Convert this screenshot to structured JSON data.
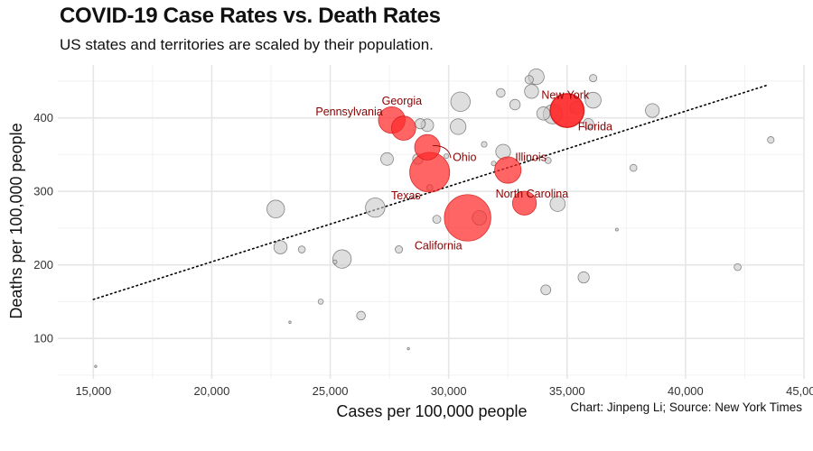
{
  "title": "COVID-19 Case Rates vs. Death Rates",
  "subtitle": "US states and territories are scaled by their population.",
  "caption": "Chart: Jinpeng Li; Source: New York Times",
  "colors": {
    "highlight_fill": "#ff2a2a",
    "highlight_stroke": "#d11111",
    "other_fill": "#c8c8c8",
    "other_stroke": "#555555",
    "label": "#8b0000",
    "grid_major": "#e6e6e6",
    "grid_minor": "#f2f2f2",
    "trend": "#000000"
  },
  "chart_data": {
    "type": "scatter",
    "xlabel": "Cases per 100,000 people",
    "ylabel": "Deaths per 100,000 people",
    "xlim": [
      13500,
      45000
    ],
    "ylim": [
      45,
      472
    ],
    "x_ticks": [
      15000,
      20000,
      25000,
      30000,
      35000,
      40000,
      45000
    ],
    "x_tick_labels": [
      "15,000",
      "20,000",
      "25,000",
      "30,000",
      "35,000",
      "40,000",
      "45,000"
    ],
    "y_ticks": [
      100,
      200,
      300,
      400
    ],
    "y_tick_labels": [
      "100",
      "200",
      "300",
      "400"
    ],
    "grid": true,
    "legend": "none",
    "trend_line": {
      "x": [
        15000,
        43500
      ],
      "y": [
        153,
        445
      ],
      "style": "dotted"
    },
    "highlighted": [
      {
        "label": "Pennsylvania",
        "x": 27600,
        "y": 397,
        "population_m": 13.0
      },
      {
        "label": "Georgia",
        "x": 28100,
        "y": 386,
        "population_m": 10.7
      },
      {
        "label": "New York",
        "x": 35000,
        "y": 410,
        "population_m": 20.2
      },
      {
        "label": "Florida",
        "x": 35000,
        "y": 410,
        "population_m": 21.5
      },
      {
        "label": "Ohio",
        "x": 29100,
        "y": 360,
        "population_m": 11.8
      },
      {
        "label": "Illinois",
        "x": 32500,
        "y": 329,
        "population_m": 12.8
      },
      {
        "label": "Texas",
        "x": 29200,
        "y": 326,
        "population_m": 29.1
      },
      {
        "label": "North Carolina",
        "x": 33200,
        "y": 284,
        "population_m": 10.4
      },
      {
        "label": "California",
        "x": 30800,
        "y": 264,
        "population_m": 39.5
      }
    ],
    "others": [
      {
        "x": 15100,
        "y": 62,
        "population_m": 0.05
      },
      {
        "x": 22700,
        "y": 276,
        "population_m": 5.7
      },
      {
        "x": 22900,
        "y": 224,
        "population_m": 3.2
      },
      {
        "x": 23300,
        "y": 122,
        "population_m": 0.1
      },
      {
        "x": 23800,
        "y": 221,
        "population_m": 0.9
      },
      {
        "x": 24600,
        "y": 150,
        "population_m": 0.5
      },
      {
        "x": 25200,
        "y": 204,
        "population_m": 0.3
      },
      {
        "x": 25500,
        "y": 208,
        "population_m": 6.2
      },
      {
        "x": 26300,
        "y": 131,
        "population_m": 1.4
      },
      {
        "x": 26900,
        "y": 278,
        "population_m": 6.9
      },
      {
        "x": 27400,
        "y": 344,
        "population_m": 2.9
      },
      {
        "x": 27900,
        "y": 221,
        "population_m": 1.0
      },
      {
        "x": 28300,
        "y": 86,
        "population_m": 0.05
      },
      {
        "x": 28700,
        "y": 344,
        "population_m": 2.0
      },
      {
        "x": 28800,
        "y": 392,
        "population_m": 1.9
      },
      {
        "x": 29100,
        "y": 390,
        "population_m": 2.9
      },
      {
        "x": 29200,
        "y": 305,
        "population_m": 0.7
      },
      {
        "x": 29500,
        "y": 262,
        "population_m": 1.2
      },
      {
        "x": 29900,
        "y": 348,
        "population_m": 0.4
      },
      {
        "x": 30400,
        "y": 388,
        "population_m": 4.5
      },
      {
        "x": 30500,
        "y": 422,
        "population_m": 6.9
      },
      {
        "x": 31300,
        "y": 264,
        "population_m": 3.8
      },
      {
        "x": 31500,
        "y": 364,
        "population_m": 0.6
      },
      {
        "x": 31900,
        "y": 338,
        "population_m": 0.4
      },
      {
        "x": 32200,
        "y": 434,
        "population_m": 1.4
      },
      {
        "x": 32300,
        "y": 354,
        "population_m": 4.0
      },
      {
        "x": 32800,
        "y": 418,
        "population_m": 2.0
      },
      {
        "x": 33400,
        "y": 452,
        "population_m": 1.3
      },
      {
        "x": 33500,
        "y": 436,
        "population_m": 3.6
      },
      {
        "x": 33700,
        "y": 456,
        "population_m": 4.5
      },
      {
        "x": 34000,
        "y": 406,
        "population_m": 3.2
      },
      {
        "x": 34100,
        "y": 166,
        "population_m": 1.8
      },
      {
        "x": 34200,
        "y": 342,
        "population_m": 0.7
      },
      {
        "x": 34400,
        "y": 405,
        "population_m": 6.8
      },
      {
        "x": 34600,
        "y": 283,
        "population_m": 4.2
      },
      {
        "x": 35400,
        "y": 414,
        "population_m": 3.0
      },
      {
        "x": 35700,
        "y": 183,
        "population_m": 2.3
      },
      {
        "x": 35900,
        "y": 392,
        "population_m": 2.0
      },
      {
        "x": 36100,
        "y": 454,
        "population_m": 1.0
      },
      {
        "x": 36100,
        "y": 424,
        "population_m": 4.6
      },
      {
        "x": 37100,
        "y": 248,
        "population_m": 0.15
      },
      {
        "x": 37800,
        "y": 332,
        "population_m": 0.9
      },
      {
        "x": 38600,
        "y": 410,
        "population_m": 3.5
      },
      {
        "x": 42200,
        "y": 197,
        "population_m": 0.9
      },
      {
        "x": 43600,
        "y": 370,
        "population_m": 0.8
      }
    ]
  }
}
